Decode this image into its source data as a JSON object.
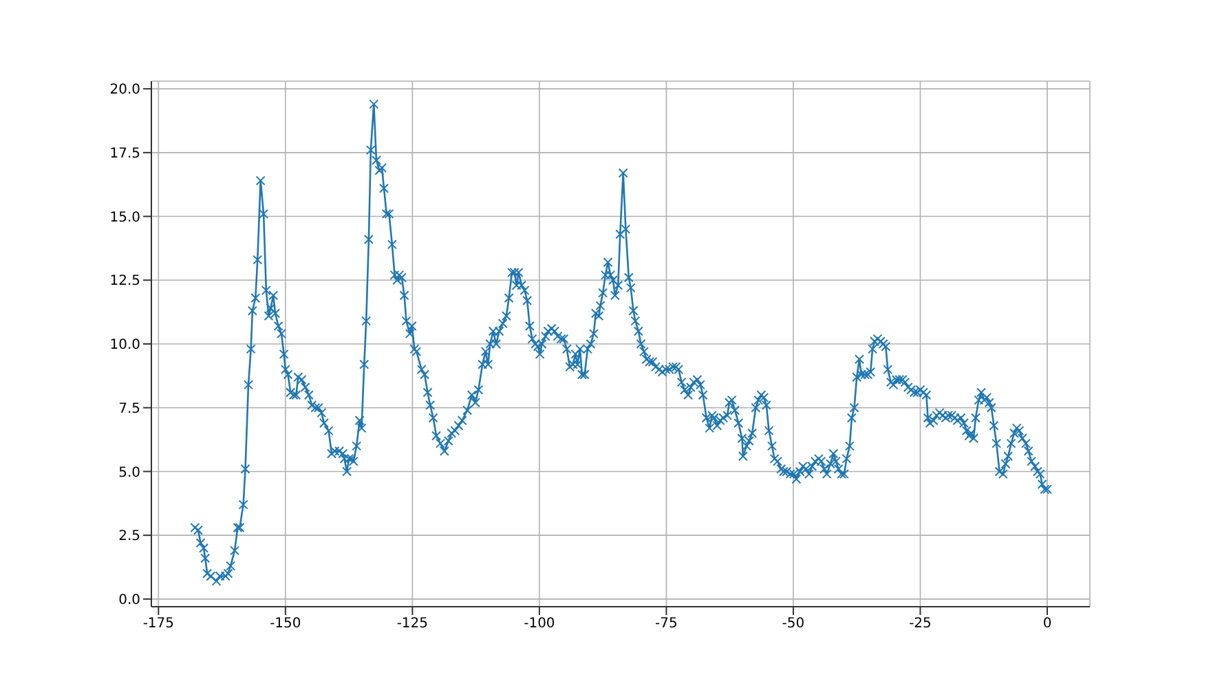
{
  "chart_data": {
    "type": "line",
    "x": [
      -167.8,
      -167.2,
      -166.7,
      -166.1,
      -165.8,
      -165.4,
      -164.7,
      -163.6,
      -162.9,
      -161.8,
      -161.3,
      -160.8,
      -160.0,
      -159.4,
      -159.0,
      -158.3,
      -157.9,
      -157.3,
      -156.8,
      -156.5,
      -155.9,
      -155.5,
      -154.9,
      -154.3,
      -153.8,
      -153.3,
      -152.9,
      -152.4,
      -152.0,
      -151.4,
      -150.8,
      -150.3,
      -150.0,
      -149.5,
      -149.0,
      -148.4,
      -147.9,
      -147.5,
      -146.8,
      -146.1,
      -145.4,
      -144.8,
      -144.1,
      -143.5,
      -142.9,
      -142.4,
      -141.5,
      -140.9,
      -140.3,
      -139.4,
      -138.7,
      -138.4,
      -137.9,
      -137.5,
      -137.0,
      -136.6,
      -136.0,
      -135.4,
      -135.0,
      -134.5,
      -134.1,
      -133.6,
      -133.2,
      -132.6,
      -132.1,
      -131.5,
      -131.0,
      -130.6,
      -130.1,
      -129.6,
      -129.0,
      -128.5,
      -128.0,
      -127.6,
      -127.1,
      -126.6,
      -126.2,
      -125.5,
      -125.1,
      -124.6,
      -124.2,
      -123.2,
      -122.6,
      -122.0,
      -121.5,
      -120.9,
      -120.3,
      -119.5,
      -118.7,
      -117.9,
      -117.3,
      -116.6,
      -115.9,
      -115.2,
      -114.2,
      -113.3,
      -112.6,
      -112.0,
      -111.2,
      -110.6,
      -110.1,
      -109.7,
      -109.1,
      -108.5,
      -107.9,
      -107.2,
      -106.5,
      -106.0,
      -105.4,
      -104.9,
      -104.5,
      -104.1,
      -103.5,
      -102.9,
      -102.4,
      -101.9,
      -101.4,
      -100.8,
      -100.3,
      -99.9,
      -99.5,
      -98.8,
      -98.3,
      -97.6,
      -97.0,
      -96.4,
      -95.7,
      -95.2,
      -94.6,
      -94.0,
      -93.4,
      -92.9,
      -92.5,
      -92.0,
      -91.6,
      -91.1,
      -90.5,
      -89.9,
      -89.3,
      -88.9,
      -88.3,
      -88.0,
      -87.5,
      -87.0,
      -86.5,
      -86.0,
      -85.5,
      -85.1,
      -84.5,
      -84.1,
      -83.5,
      -83.0,
      -82.4,
      -82.0,
      -81.5,
      -81.1,
      -80.5,
      -80.0,
      -79.4,
      -78.9,
      -78.3,
      -77.7,
      -77.1,
      -76.4,
      -75.8,
      -75.1,
      -74.4,
      -73.7,
      -73.1,
      -72.6,
      -72.0,
      -71.4,
      -70.7,
      -70.2,
      -69.6,
      -68.9,
      -68.3,
      -67.8,
      -67.1,
      -66.5,
      -66.0,
      -65.6,
      -65.0,
      -64.4,
      -63.8,
      -63.0,
      -62.6,
      -62.1,
      -61.5,
      -60.8,
      -60.1,
      -59.9,
      -59.2,
      -58.7,
      -58.1,
      -57.4,
      -56.9,
      -56.3,
      -55.8,
      -55.3,
      -54.8,
      -54.2,
      -53.7,
      -53.1,
      -52.4,
      -51.9,
      -51.3,
      -50.6,
      -49.9,
      -49.4,
      -48.7,
      -48.1,
      -47.5,
      -46.9,
      -46.3,
      -45.7,
      -45.0,
      -44.5,
      -43.9,
      -43.4,
      -42.7,
      -42.1,
      -41.6,
      -41.1,
      -40.5,
      -40.0,
      -39.5,
      -38.9,
      -38.5,
      -38.0,
      -37.5,
      -37.0,
      -36.6,
      -35.9,
      -35.3,
      -34.8,
      -34.4,
      -34.0,
      -33.4,
      -32.8,
      -32.3,
      -31.8,
      -31.4,
      -30.8,
      -30.3,
      -29.7,
      -29.1,
      -28.5,
      -28.0,
      -27.4,
      -26.8,
      -26.2,
      -25.6,
      -25.0,
      -24.4,
      -23.8,
      -23.5,
      -23.1,
      -22.4,
      -21.8,
      -21.2,
      -20.6,
      -20.0,
      -19.5,
      -18.8,
      -18.2,
      -17.7,
      -17.0,
      -16.4,
      -15.9,
      -15.4,
      -15.0,
      -14.5,
      -14.1,
      -13.5,
      -13.0,
      -12.4,
      -11.9,
      -11.4,
      -11.0,
      -10.5,
      -10.0,
      -9.4,
      -8.7,
      -8.2,
      -7.7,
      -7.1,
      -6.5,
      -6.0,
      -5.5,
      -4.9,
      -4.2,
      -3.7,
      -3.1,
      -2.4,
      -1.9,
      -1.4,
      -1.0,
      -0.5,
      0.0
    ],
    "series": [
      {
        "color": "#1f77b4",
        "values": [
          2.8,
          2.7,
          2.2,
          2.0,
          1.6,
          1.0,
          0.9,
          0.7,
          0.9,
          0.9,
          1.0,
          1.3,
          1.9,
          2.8,
          2.8,
          3.7,
          5.1,
          8.4,
          9.8,
          11.3,
          11.8,
          13.3,
          16.4,
          15.1,
          12.1,
          11.1,
          11.4,
          11.9,
          11.2,
          10.7,
          10.4,
          9.6,
          9.0,
          8.8,
          8.1,
          8.0,
          8.0,
          8.7,
          8.6,
          8.3,
          8.0,
          7.6,
          7.5,
          7.5,
          7.3,
          6.9,
          6.6,
          5.7,
          5.8,
          5.8,
          5.7,
          5.5,
          5.0,
          5.5,
          5.5,
          5.4,
          6.0,
          7.0,
          6.7,
          9.2,
          10.9,
          14.1,
          17.6,
          19.4,
          17.2,
          16.8,
          16.9,
          16.1,
          15.1,
          15.1,
          13.9,
          12.7,
          12.5,
          12.7,
          12.6,
          11.9,
          10.9,
          10.4,
          10.7,
          9.8,
          9.7,
          9.0,
          8.8,
          8.1,
          7.6,
          7.1,
          6.4,
          6.1,
          5.8,
          6.2,
          6.5,
          6.6,
          6.8,
          7.0,
          7.4,
          8.0,
          7.7,
          8.2,
          9.2,
          9.7,
          9.2,
          10.0,
          10.5,
          10.0,
          10.5,
          10.8,
          11.1,
          11.8,
          12.8,
          12.8,
          12.3,
          12.8,
          12.3,
          12.1,
          11.7,
          10.7,
          10.2,
          10.0,
          9.9,
          9.6,
          10.0,
          10.3,
          10.5,
          10.6,
          10.5,
          10.3,
          10.2,
          10.2,
          9.8,
          9.1,
          9.2,
          9.6,
          9.2,
          9.8,
          8.8,
          8.8,
          9.8,
          10.0,
          10.4,
          11.2,
          11.1,
          11.5,
          12.0,
          12.7,
          13.2,
          12.7,
          12.5,
          11.9,
          12.3,
          14.3,
          16.7,
          14.5,
          12.6,
          12.2,
          11.3,
          10.9,
          10.5,
          10.0,
          9.7,
          9.4,
          9.3,
          9.3,
          9.1,
          9.0,
          8.9,
          9.0,
          9.0,
          9.1,
          9.1,
          9.0,
          8.5,
          8.2,
          8.0,
          8.3,
          8.5,
          8.6,
          8.4,
          8.0,
          7.1,
          6.7,
          7.2,
          7.1,
          6.8,
          7.0,
          7.1,
          7.2,
          7.7,
          7.8,
          7.4,
          6.9,
          6.3,
          5.6,
          6.0,
          6.2,
          6.5,
          7.5,
          7.8,
          8.0,
          7.9,
          7.6,
          6.6,
          6.0,
          5.5,
          5.4,
          5.1,
          5.0,
          5.0,
          4.9,
          4.9,
          4.7,
          5.0,
          5.2,
          5.1,
          4.9,
          5.2,
          5.4,
          5.5,
          5.4,
          5.1,
          4.9,
          5.3,
          5.7,
          5.4,
          5.1,
          4.9,
          4.9,
          5.5,
          6.0,
          7.1,
          7.5,
          8.7,
          9.4,
          8.8,
          8.8,
          8.8,
          8.9,
          9.8,
          10.1,
          10.2,
          10.1,
          10.0,
          9.9,
          9.0,
          8.5,
          8.4,
          8.6,
          8.6,
          8.6,
          8.5,
          8.3,
          8.2,
          8.1,
          8.1,
          8.2,
          8.1,
          8.0,
          7.1,
          6.9,
          7.0,
          7.2,
          7.3,
          7.2,
          7.1,
          7.2,
          7.2,
          7.1,
          7.0,
          7.1,
          6.9,
          6.6,
          6.4,
          6.5,
          6.3,
          7.1,
          7.8,
          8.1,
          7.8,
          7.9,
          7.7,
          7.5,
          6.8,
          6.1,
          5.0,
          4.9,
          5.3,
          5.6,
          6.1,
          6.5,
          6.7,
          6.6,
          6.3,
          6.1,
          5.8,
          5.4,
          5.2,
          5.0,
          4.9,
          4.5,
          4.3,
          4.3
        ]
      }
    ],
    "xlim": [
      -176.4,
      8.4
    ],
    "xticks": [
      -175,
      -150,
      -125,
      -100,
      -75,
      -50,
      -25,
      0
    ],
    "ylim": [
      -0.3,
      20.3
    ],
    "yticks": [
      {
        "value": 0,
        "label": "0.0"
      },
      {
        "value": 2.5,
        "label": "2.5"
      },
      {
        "value": 5,
        "label": "5.0"
      },
      {
        "value": 7.5,
        "label": "7.5"
      },
      {
        "value": 10,
        "label": "10.0"
      },
      {
        "value": 12.5,
        "label": "12.5"
      },
      {
        "value": 15,
        "label": "15.0"
      },
      {
        "value": 17.5,
        "label": "17.5"
      },
      {
        "value": 20,
        "label": "20.0"
      }
    ],
    "grid": true,
    "marker": "cross",
    "line_style": "solid"
  }
}
